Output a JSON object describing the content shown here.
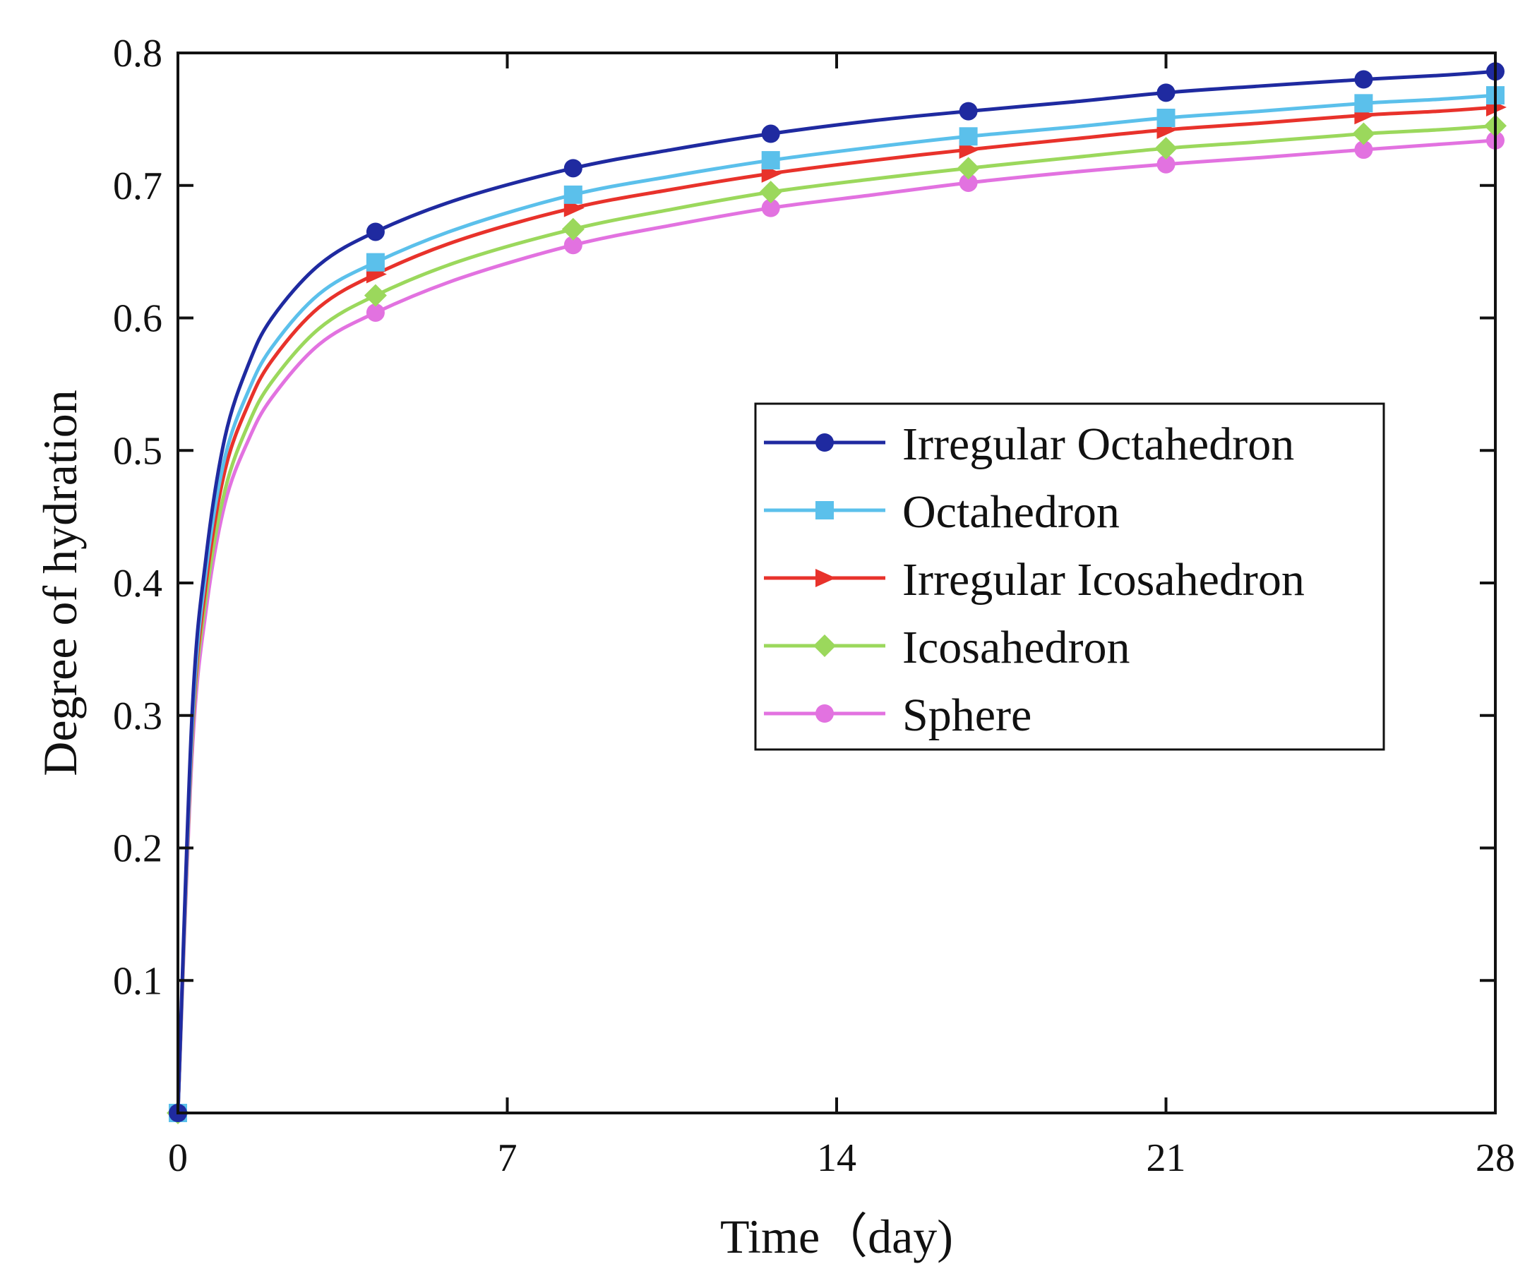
{
  "chart_data": {
    "type": "line",
    "xlabel": "Time（day)",
    "ylabel": "Degree  of  hydration",
    "xlim": [
      0,
      28
    ],
    "ylim": [
      0,
      0.8
    ],
    "xticks": [
      "0",
      "7",
      "14",
      "21",
      "28"
    ],
    "yticks": [
      "0.1",
      "0.2",
      "0.3",
      "0.4",
      "0.5",
      "0.6",
      "0.7",
      "0.8"
    ],
    "grid": false,
    "legend_position": "center-right",
    "series": [
      {
        "name": "Irregular Octahedron",
        "color": "#1f2aa0",
        "marker": "circle",
        "x": [
          0,
          0.3,
          0.6,
          1,
          1.5,
          2,
          3,
          4.2,
          6,
          8.4,
          10.5,
          12.6,
          14.8,
          16.8,
          19,
          21,
          23,
          25.2,
          26.8,
          28
        ],
        "y": [
          0,
          0.3,
          0.42,
          0.51,
          0.565,
          0.6,
          0.64,
          0.665,
          0.69,
          0.713,
          0.727,
          0.739,
          0.749,
          0.756,
          0.763,
          0.77,
          0.775,
          0.78,
          0.783,
          0.786
        ]
      },
      {
        "name": "Octahedron",
        "color": "#5bc0eb",
        "marker": "square",
        "x": [
          0,
          0.3,
          0.6,
          1,
          1.5,
          2,
          3,
          4.2,
          6,
          8.4,
          10.5,
          12.6,
          14.8,
          16.8,
          19,
          21,
          23,
          25.2,
          26.8,
          28
        ],
        "y": [
          0,
          0.29,
          0.41,
          0.495,
          0.545,
          0.578,
          0.618,
          0.642,
          0.668,
          0.693,
          0.707,
          0.719,
          0.729,
          0.737,
          0.744,
          0.751,
          0.756,
          0.762,
          0.765,
          0.768
        ]
      },
      {
        "name": "Irregular Icosahedron",
        "color": "#e8322b",
        "marker": "triangle-right",
        "x": [
          0,
          0.3,
          0.6,
          1,
          1.5,
          2,
          3,
          4.2,
          6,
          8.4,
          10.5,
          12.6,
          14.8,
          16.8,
          19,
          21,
          23,
          25.2,
          26.8,
          28
        ],
        "y": [
          0,
          0.285,
          0.4,
          0.485,
          0.535,
          0.568,
          0.608,
          0.633,
          0.659,
          0.683,
          0.697,
          0.709,
          0.719,
          0.727,
          0.735,
          0.742,
          0.747,
          0.753,
          0.756,
          0.759
        ]
      },
      {
        "name": "Icosahedron",
        "color": "#9bd85c",
        "marker": "diamond",
        "x": [
          0,
          0.3,
          0.6,
          1,
          1.5,
          2,
          3,
          4.2,
          6,
          8.4,
          10.5,
          12.6,
          14.8,
          16.8,
          19,
          21,
          23,
          25.2,
          26.8,
          28
        ],
        "y": [
          0,
          0.28,
          0.39,
          0.47,
          0.52,
          0.552,
          0.592,
          0.617,
          0.643,
          0.667,
          0.682,
          0.695,
          0.705,
          0.713,
          0.721,
          0.728,
          0.733,
          0.739,
          0.742,
          0.745
        ]
      },
      {
        "name": "Sphere",
        "color": "#e272e0",
        "marker": "circle",
        "x": [
          0,
          0.3,
          0.6,
          1,
          1.5,
          2,
          3,
          4.2,
          6,
          8.4,
          10.5,
          12.6,
          14.8,
          16.8,
          19,
          21,
          23,
          25.2,
          26.8,
          28
        ],
        "y": [
          0,
          0.27,
          0.38,
          0.46,
          0.508,
          0.54,
          0.58,
          0.604,
          0.63,
          0.655,
          0.67,
          0.683,
          0.693,
          0.702,
          0.71,
          0.716,
          0.721,
          0.727,
          0.731,
          0.734
        ]
      }
    ],
    "marker_x": [
      0,
      4.2,
      8.4,
      12.6,
      16.8,
      21,
      25.2,
      28
    ]
  }
}
